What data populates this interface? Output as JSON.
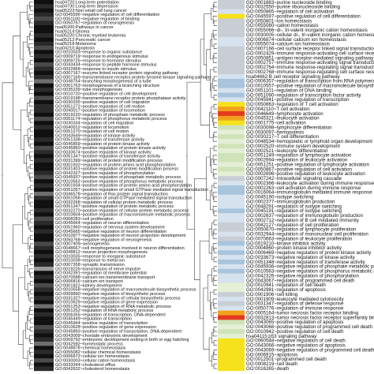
{
  "colors": {
    "tree_line": "#333333",
    "label_text": "#111111",
    "left_heat": [
      "#101010",
      "#2a2a2a",
      "#4a4a4a",
      "#6e6e6e",
      "#9a9a9a",
      "#c8c8c8"
    ],
    "right_heat": {
      "gray": "#c9cdd4",
      "blue": "#a9c4dd",
      "lightblue": "#d6e2ee",
      "green": "#cfe3b8",
      "lightgreen": "#e4efd6",
      "yellow": "#f5e21c",
      "orange": "#f3a11c",
      "red": "#e5391e",
      "pale": "#eef0f2"
    }
  },
  "left_panel": {
    "labels": [
      "hsa04720:Long-term potentiation",
      "hsa04730:Long-term depression",
      "hsa05223:Non-small cell lung cancer",
      "GO:0045596~negative regulation of cell differentiation",
      "GO:0051100~negative regulation of binding",
      "GO:0050767~regulation of neurogenesis",
      "hsa05200:Pathways in cancer",
      "hsa05214:Glioma",
      "hsa05220:Chronic myeloid leukemia",
      "hsa05212:Pancreatic cancer",
      "hsa05218:Melanoma",
      "hsa04210:Apoptosis",
      "GO:0010033~response to organic substance",
      "GO:0009719~response to endogenous stimulus",
      "GO:0009725~response to hormone stimulus",
      "GO:0043434~response to peptide hormone stimulus",
      "GO:0032868~response to insulin stimulus",
      "GO:0007167~enzyme linked receptor protein signaling pathway",
      "GO:0007169~transmembrane receptor protein tyrosine kinase signaling pathway",
      "GO:0048754~branching morphogenesis of a tube",
      "GO:0001763~morphogenesis of a branching structure",
      "GO:0035239~tube morphogenesis",
      "GO:0010720~positive regulation of cell development",
      "GO:0019198~transmembrane receptor protein phosphatase activity",
      "GO:0030335~positive regulation of cell migration",
      "GO:0051272~positive regulation of cell motion",
      "GO:0040017~positive regulation of locomotion",
      "GO:0019220~regulation of phosphate metabolic process",
      "GO:0051174~regulation of phosphorus metabolic process",
      "GO:0030334~regulation of cell migration",
      "GO:0040012~regulation of locomotion",
      "GO:0051270~regulation of cell motion",
      "GO:0043549~regulation of kinase activity",
      "GO:0051338~regulation of transferase activity",
      "GO:0045859~regulation of protein kinase activity",
      "GO:0045860~positive regulation of protein kinase activity",
      "GO:0033674~positive regulation of kinase activity",
      "GO:0051347~positive regulation of transferase activity",
      "GO:0031399~regulation of protein modification process",
      "GO:0001932~regulation of protein amino acid phosphorylation",
      "GO:0031401~positive regulation of protein modification process",
      "GO:0042327~positive regulation of phosphorylation",
      "GO:0045937~positive regulation of phosphate metabolic process",
      "GO:0010562~positive regulation of phosphorus metabolic process",
      "GO:0001934~positive regulation of protein amino acid phosphorylation",
      "GO:0051057~positive regulation of small GTPase mediated signal transduction",
      "GO:0046578~regulation of Ras protein signal transduction",
      "GO:0051056~regulation of small GTPase mediated signal transduction",
      "GO:0032268~regulation of cellular protein metabolic process",
      "GO:0051247~positive regulation of protein metabolic process",
      "GO:0032270~positive regulation of cellular protein metabolic process",
      "GO:0010604~positive regulation of macromolecule metabolic process",
      "GO:0008283~cell proliferation",
      "GO:0045664~regulation of neuron differentiation",
      "GO:0051960~regulation of nervous system development",
      "GO:0045665~negative regulation of neuron differentiation",
      "GO:0010977~negative regulation of neuron projection development",
      "GO:0050768~negative regulation of neurogenesis",
      "GO:0007409~axonogenesis",
      "GO:0048667~cell morphogenesis involved in neuron differentiation",
      "GO:0048812~neuron projection morphogenesis",
      "GO:0010035~response to inorganic substance",
      "GO:0010038~response to metal ion",
      "GO:0007268~synaptic transmission",
      "GO:0019226~transmission of nerve impulse",
      "GO:0042391~regulation of membrane potential",
      "GO:0070588~calcium ion transmembrane transport",
      "GO:0006816~calcium ion transport",
      "GO:0001822~kidney development",
      "GO:0010558~negative regulation of macromolecule biosynthetic process",
      "GO:0009890~negative regulation of biosynthetic process",
      "GO:0031327~negative regulation of cellular biosynthetic process",
      "GO:0010629~negative regulation of gene expression",
      "GO:0051253~negative regulation of RNA metabolic process",
      "GO:0051252~regulation of RNA metabolic process",
      "GO:0006355~regulation of transcription, DNA-dependent",
      "GO:0045449~regulation of transcription",
      "GO:0045944~positive regulation of transcription",
      "GO:0010628~positive regulation of gene expression",
      "GO:0045893~positive regulation of transcription, DNA-dependent",
      "GO:0043009~chordate embryonic development",
      "GO:0009792~embryonic development ending in birth or egg hatching",
      "GO:0042592~homeostatic process",
      "GO:0048878~chemical homeostasis",
      "GO:0055082~cellular chemical homeostasis",
      "GO:0006873~cellular ion homeostasis",
      "GO:0030003~cellular cation homeostasis",
      "GO:0033344~cholesterol efflux",
      "GO:0042632~cholesterol homeostasis"
    ],
    "heat_levels": [
      0,
      1,
      0,
      1,
      2,
      1,
      0,
      0,
      1,
      0,
      1,
      2,
      0,
      1,
      0,
      2,
      1,
      0,
      1,
      3,
      0,
      1,
      0,
      2,
      0,
      1,
      1,
      0,
      2,
      0,
      1,
      0,
      0,
      1,
      0,
      2,
      1,
      0,
      1,
      0,
      0,
      1,
      2,
      0,
      1,
      0,
      3,
      1,
      0,
      0,
      1,
      0,
      2,
      1,
      0,
      1,
      0,
      0,
      2,
      1,
      0,
      1,
      0,
      1,
      4,
      0,
      1,
      0,
      2,
      1,
      0,
      1,
      0,
      3,
      0,
      1,
      0,
      0,
      2,
      1,
      0,
      1,
      3,
      0,
      1,
      0,
      2,
      0,
      1
    ]
  },
  "right_panel": {
    "labels": [
      "GO:0001883~purine nucleoside binding",
      "GO:0032550~purine ribonucleoside binding",
      "GO:0050865~regulation of cell activation",
      "GO:0045597~positive regulation of cell differentiation",
      "GO:0050801~ion homeostasis",
      "GO:0055080~cation homeostasis",
      "GO:0055066~di-, tri-valent inorganic cation homeostasis",
      "GO:0030005~cellular di-, tri-valent inorganic cation homeostasis",
      "GO:0006874~cellular calcium ion homeostasis",
      "GO:0055074~calcium ion homeostasis",
      "GO:0007166~cell surface receptor linked signal transduction",
      "GO:0002429~immune response-activating cell surface receptor signaling pathway",
      "GO:0050851~antigen receptor-mediated signaling pathway",
      "GO:0002757~immune response-activating signal transduction",
      "GO:0002764~immune response-regulating signal transduction",
      "GO:0002768~immune response-regulating cell surface receptor signaling pathway",
      "hsa04662:B cell receptor signaling pathway",
      "GO:0006357~regulation of transcription from RNA polymerase II promoter",
      "GO:0010557~positive regulation of macromolecule biosynthetic process",
      "GO:0051101~regulation of DNA binding",
      "GO:0051090~regulation of transcription factor activity",
      "GO:0045941~positive regulation of transcription",
      "GO:0050863~regulation of T cell activation",
      "GO:0042110~T cell activation",
      "GO:0046649~lymphocyte activation",
      "GO:0045321~leukocyte activation",
      "GO:0001775~cell activation",
      "GO:0030098~lymphocyte differentiation",
      "GO:0030097~hemopoiesis",
      "GO:0030217~T cell differentiation",
      "GO:0048534~hemopoietic or lymphoid organ development",
      "GO:0002520~immune system development",
      "GO:0002521~leukocyte differentiation",
      "GO:0051249~regulation of lymphocyte activation",
      "GO:0002694~regulation of leukocyte activation",
      "GO:0051251~positive regulation of lymphocyte activation",
      "GO:0050867~positive regulation of cell activation",
      "GO:0002696~positive regulation of leukocyte activation",
      "GO:0007242~intracellular signaling cascade",
      "GO:0002366~leukocyte activation during immune response",
      "GO:0002263~cell activation during immune response",
      "GO:0016064~immunoglobulin mediated immune response",
      "GO:0045190~isotype switching",
      "GO:0002377~immunoglobulin production",
      "GO:0048291~regulation of isotype switching",
      "GO:0045191~regulation of isotype switching",
      "GO:0002637~regulation of immunoglobulin production",
      "GO:0002712~regulation of B cell mediated immunity",
      "GO:0042127~regulation of cell proliferation",
      "GO:0050670~regulation of lymphocyte proliferation",
      "GO:0032944~regulation of mononuclear cell proliferation",
      "GO:0070663~regulation of leukocyte proliferation",
      "GO:0019210~kinase inhibitor activity",
      "GO:0004860~protein kinase inhibitor activity",
      "GO:0006469~negative regulation of protein kinase activity",
      "GO:0033673~negative regulation of kinase activity",
      "GO:0051348~negative regulation of transferase activity",
      "GO:0045936~negative regulation of phosphate metabolic process",
      "GO:0010563~negative regulation of phosphorus metabolic process",
      "GO:0042326~negative regulation of phosphorylation",
      "GO:0043067~regulation of programmed cell death",
      "GO:0010941~regulation of cell death",
      "GO:0042981~regulation of apoptosis",
      "GO:0001906~cell killing",
      "GO:0001909~leukocyte mediated cytotoxicity",
      "GO:0031347~regulation of defense response",
      "GO:0050776~regulation of immune response",
      "GO:0005164~tumor necrosis factor receptor binding",
      "GO:0032813~tumor necrosis factor receptor superfamily binding",
      "GO:0043065~positive regulation of apoptosis",
      "GO:0043068~positive regulation of programmed cell death",
      "GO:0010942~positive regulation of cell death",
      "hsa04115:p53 signaling pathway",
      "GO:0060548~negative regulation of cell death",
      "GO:0043066~negative regulation of apoptosis",
      "GO:0043069~negative regulation of programmed cell death",
      "GO:0006915~apoptosis",
      "GO:0012501~programmed cell death",
      "GO:0008219~cell death",
      "GO:0016265~death"
    ],
    "heat_colors": [
      "gray",
      "gray",
      "lightblue",
      "yellow",
      "gray",
      "gray",
      "gray",
      "gray",
      "lightblue",
      "lightblue",
      "gray",
      "gray",
      "gray",
      "gray",
      "gray",
      "gray",
      "lightblue",
      "blue",
      "blue",
      "lightblue",
      "blue",
      "lightblue",
      "yellow",
      "orange",
      "red",
      "orange",
      "yellow",
      "green",
      "lightgreen",
      "green",
      "lightgreen",
      "green",
      "lightgreen",
      "green",
      "green",
      "lightgreen",
      "green",
      "lightgreen",
      "gray",
      "lightblue",
      "blue",
      "blue",
      "lightblue",
      "lightblue",
      "lightblue",
      "blue",
      "lightblue",
      "lightblue",
      "gray",
      "gray",
      "lightblue",
      "gray",
      "blue",
      "lightblue",
      "blue",
      "lightblue",
      "blue",
      "lightblue",
      "blue",
      "lightblue",
      "lightblue",
      "lightgreen",
      "lightgreen",
      "gray",
      "lightblue",
      "gray",
      "lightblue",
      "orange",
      "red",
      "green",
      "lightgreen",
      "green",
      "lightgreen",
      "yellow",
      "yellow",
      "yellow",
      "yellow",
      "yellow",
      "yellow",
      "yellow"
    ]
  }
}
